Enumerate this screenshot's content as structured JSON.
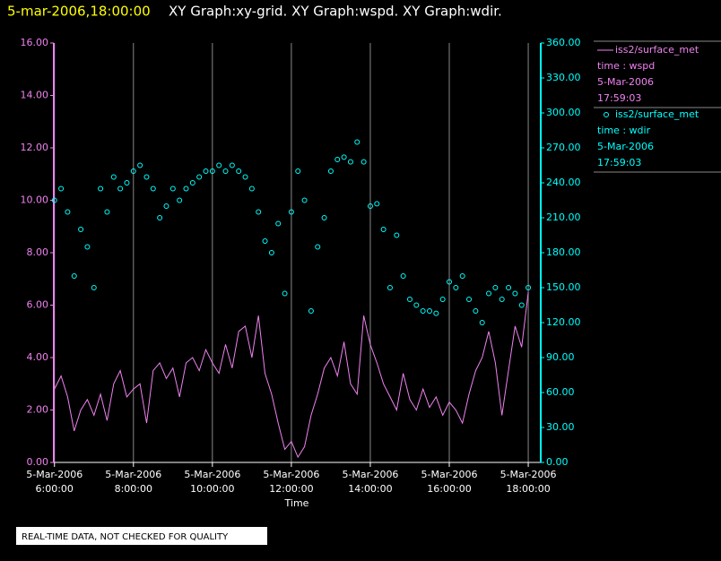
{
  "chart_data": {
    "type": "line",
    "title": "5-mar-2006,18:00:00",
    "subtitle": "XY Graph:xy-grid.  XY Graph:wspd.  XY Graph:wdir.",
    "x_label": "Time",
    "footer": "REAL-TIME DATA, NOT CHECKED FOR QUALITY",
    "grid": true,
    "x": [
      "2006-03-05T06:00",
      "2006-03-05T06:10",
      "2006-03-05T06:20",
      "2006-03-05T06:30",
      "2006-03-05T06:40",
      "2006-03-05T06:50",
      "2006-03-05T07:00",
      "2006-03-05T07:10",
      "2006-03-05T07:20",
      "2006-03-05T07:30",
      "2006-03-05T07:40",
      "2006-03-05T07:50",
      "2006-03-05T08:00",
      "2006-03-05T08:10",
      "2006-03-05T08:20",
      "2006-03-05T08:30",
      "2006-03-05T08:40",
      "2006-03-05T08:50",
      "2006-03-05T09:00",
      "2006-03-05T09:10",
      "2006-03-05T09:20",
      "2006-03-05T09:30",
      "2006-03-05T09:40",
      "2006-03-05T09:50",
      "2006-03-05T10:00",
      "2006-03-05T10:10",
      "2006-03-05T10:20",
      "2006-03-05T10:30",
      "2006-03-05T10:40",
      "2006-03-05T10:50",
      "2006-03-05T11:00",
      "2006-03-05T11:10",
      "2006-03-05T11:20",
      "2006-03-05T11:30",
      "2006-03-05T11:40",
      "2006-03-05T11:50",
      "2006-03-05T12:00",
      "2006-03-05T12:10",
      "2006-03-05T12:20",
      "2006-03-05T12:30",
      "2006-03-05T12:40",
      "2006-03-05T12:50",
      "2006-03-05T13:00",
      "2006-03-05T13:10",
      "2006-03-05T13:20",
      "2006-03-05T13:30",
      "2006-03-05T13:40",
      "2006-03-05T13:50",
      "2006-03-05T14:00",
      "2006-03-05T14:10",
      "2006-03-05T14:20",
      "2006-03-05T14:30",
      "2006-03-05T14:40",
      "2006-03-05T14:50",
      "2006-03-05T15:00",
      "2006-03-05T15:10",
      "2006-03-05T15:20",
      "2006-03-05T15:30",
      "2006-03-05T15:40",
      "2006-03-05T15:50",
      "2006-03-05T16:00",
      "2006-03-05T16:10",
      "2006-03-05T16:20",
      "2006-03-05T16:30",
      "2006-03-05T16:40",
      "2006-03-05T16:50",
      "2006-03-05T17:00",
      "2006-03-05T17:10",
      "2006-03-05T17:20",
      "2006-03-05T17:30",
      "2006-03-05T17:40",
      "2006-03-05T17:50",
      "2006-03-05T18:00"
    ],
    "xlim": [
      "2006-03-05T05:59",
      "2006-03-05T18:19"
    ],
    "xticks": [
      {
        "value": "2006-03-05T06:00",
        "label": "5-Mar-2006 6:00:00"
      },
      {
        "value": "2006-03-05T08:00",
        "label": "5-Mar-2006 8:00:00"
      },
      {
        "value": "2006-03-05T10:00",
        "label": "5-Mar-2006 10:00:00"
      },
      {
        "value": "2006-03-05T12:00",
        "label": "5-Mar-2006 12:00:00"
      },
      {
        "value": "2006-03-05T14:00",
        "label": "5-Mar-2006 14:00:00"
      },
      {
        "value": "2006-03-05T16:00",
        "label": "5-Mar-2006 16:00:00"
      },
      {
        "value": "2006-03-05T18:00",
        "label": "5-Mar-2006 18:00:00"
      }
    ],
    "ylim": [
      0,
      16
    ],
    "yticks": [
      {
        "value": 0,
        "label": "0.00"
      },
      {
        "value": 2,
        "label": "2.00"
      },
      {
        "value": 4,
        "label": "4.00"
      },
      {
        "value": 6,
        "label": "6.00"
      },
      {
        "value": 8,
        "label": "8.00"
      },
      {
        "value": 10,
        "label": "10.00"
      },
      {
        "value": 12,
        "label": "12.00"
      },
      {
        "value": 14,
        "label": "14.00"
      },
      {
        "value": 16,
        "label": "16.00"
      }
    ],
    "y2lim": [
      0,
      360
    ],
    "y2ticks": [
      {
        "value": 0,
        "label": "0.00"
      },
      {
        "value": 30,
        "label": "30.00"
      },
      {
        "value": 60,
        "label": "60.00"
      },
      {
        "value": 90,
        "label": "90.00"
      },
      {
        "value": 120,
        "label": "120.00"
      },
      {
        "value": 150,
        "label": "150.00"
      },
      {
        "value": 180,
        "label": "180.00"
      },
      {
        "value": 210,
        "label": "210.00"
      },
      {
        "value": 240,
        "label": "240.00"
      },
      {
        "value": 270,
        "label": "270.00"
      },
      {
        "value": 300,
        "label": "300.00"
      },
      {
        "value": 330,
        "label": "330.00"
      },
      {
        "value": 360,
        "label": "360.00"
      }
    ],
    "series": [
      {
        "name": "iss2/surface_met",
        "legend_lines": [
          "time : wspd",
          "5-Mar-2006",
          "17:59:03"
        ],
        "color": "#ee82ee",
        "mode": "lines",
        "axis": "y",
        "values": [
          2.8,
          3.3,
          2.5,
          1.2,
          2.0,
          2.4,
          1.8,
          2.6,
          1.6,
          3.0,
          3.5,
          2.5,
          2.8,
          3.0,
          1.5,
          3.5,
          3.8,
          3.2,
          3.6,
          2.5,
          3.8,
          4.0,
          3.5,
          4.3,
          3.8,
          3.4,
          4.5,
          3.6,
          5.0,
          5.2,
          4.0,
          5.6,
          3.4,
          2.6,
          1.5,
          0.5,
          0.8,
          0.2,
          0.6,
          1.8,
          2.6,
          3.6,
          4.0,
          3.3,
          4.6,
          3.0,
          2.6,
          5.6,
          4.5,
          3.8,
          3.0,
          2.5,
          2.0,
          3.4,
          2.4,
          2.0,
          2.8,
          2.1,
          2.5,
          1.8,
          2.3,
          2.0,
          1.5,
          2.6,
          3.5,
          4.0,
          5.0,
          3.8,
          1.8,
          3.5,
          5.2,
          4.4,
          6.5
        ]
      },
      {
        "name": "iss2/surface_met",
        "legend_lines": [
          "time : wdir",
          "5-Mar-2006",
          "17:59:03"
        ],
        "color": "#00ffff",
        "mode": "markers",
        "axis": "y2",
        "values": [
          225,
          235,
          215,
          160,
          200,
          185,
          150,
          235,
          215,
          245,
          235,
          240,
          250,
          255,
          245,
          235,
          210,
          220,
          235,
          225,
          235,
          240,
          245,
          250,
          250,
          255,
          250,
          255,
          250,
          245,
          235,
          215,
          190,
          180,
          205,
          145,
          215,
          250,
          225,
          130,
          185,
          210,
          250,
          260,
          262,
          258,
          275,
          258,
          220,
          222,
          200,
          150,
          195,
          160,
          140,
          135,
          130,
          130,
          128,
          140,
          155,
          150,
          160,
          140,
          130,
          120,
          145,
          150,
          140,
          150,
          145,
          135,
          150
        ]
      }
    ]
  }
}
